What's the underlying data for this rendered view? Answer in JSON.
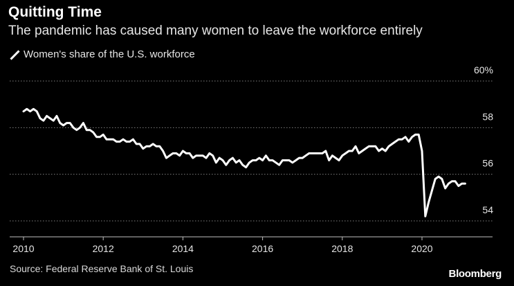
{
  "header": {
    "title": "Quitting Time",
    "subtitle": "The pandemic has caused many women to leave the workforce entirely"
  },
  "legend": {
    "label": "Women's share of the U.S. workforce"
  },
  "footer": {
    "source": "Source: Federal Reserve Bank of St. Louis",
    "brand": "Bloomberg"
  },
  "colors": {
    "background": "#000000",
    "line": "#ffffff",
    "grid": "#7f7f7f"
  },
  "chart_data": {
    "type": "line",
    "title": "Quitting Time",
    "subtitle": "The pandemic has caused many women to leave the workforce entirely",
    "xlabel": "",
    "ylabel": "",
    "xlim": [
      2009.85,
      2021.6
    ],
    "ylim": [
      53.5,
      60.3
    ],
    "x_ticks": [
      "2010",
      "2012",
      "2014",
      "2016",
      "2018",
      "2020"
    ],
    "y_ticks": [
      54,
      56,
      58,
      60
    ],
    "y_tick_labels": [
      "54",
      "56",
      "58",
      "60%"
    ],
    "grid": true,
    "legend_position": "top-left",
    "series": [
      {
        "name": "Women's share of the U.S. workforce",
        "x": [
          2010.0,
          2010.083,
          2010.167,
          2010.25,
          2010.333,
          2010.417,
          2010.5,
          2010.583,
          2010.667,
          2010.75,
          2010.833,
          2010.917,
          2011.0,
          2011.083,
          2011.167,
          2011.25,
          2011.333,
          2011.417,
          2011.5,
          2011.583,
          2011.667,
          2011.75,
          2011.833,
          2011.917,
          2012.0,
          2012.083,
          2012.167,
          2012.25,
          2012.333,
          2012.417,
          2012.5,
          2012.583,
          2012.667,
          2012.75,
          2012.833,
          2012.917,
          2013.0,
          2013.083,
          2013.167,
          2013.25,
          2013.333,
          2013.417,
          2013.5,
          2013.583,
          2013.667,
          2013.75,
          2013.833,
          2013.917,
          2014.0,
          2014.083,
          2014.167,
          2014.25,
          2014.333,
          2014.417,
          2014.5,
          2014.583,
          2014.667,
          2014.75,
          2014.833,
          2014.917,
          2015.0,
          2015.083,
          2015.167,
          2015.25,
          2015.333,
          2015.417,
          2015.5,
          2015.583,
          2015.667,
          2015.75,
          2015.833,
          2015.917,
          2016.0,
          2016.083,
          2016.167,
          2016.25,
          2016.333,
          2016.417,
          2016.5,
          2016.583,
          2016.667,
          2016.75,
          2016.833,
          2016.917,
          2017.0,
          2017.083,
          2017.167,
          2017.25,
          2017.333,
          2017.417,
          2017.5,
          2017.583,
          2017.667,
          2017.75,
          2017.833,
          2017.917,
          2018.0,
          2018.083,
          2018.167,
          2018.25,
          2018.333,
          2018.417,
          2018.5,
          2018.583,
          2018.667,
          2018.75,
          2018.833,
          2018.917,
          2019.0,
          2019.083,
          2019.167,
          2019.25,
          2019.333,
          2019.417,
          2019.5,
          2019.583,
          2019.667,
          2019.75,
          2019.833,
          2019.917,
          2020.0,
          2020.083,
          2020.167,
          2020.25,
          2020.333,
          2020.417,
          2020.5,
          2020.583,
          2020.667,
          2020.75,
          2020.833,
          2020.917,
          2021.0,
          2021.083
        ],
        "values": [
          58.7,
          58.8,
          58.7,
          58.8,
          58.7,
          58.4,
          58.3,
          58.5,
          58.4,
          58.3,
          58.5,
          58.2,
          58.1,
          58.2,
          58.2,
          58.0,
          57.9,
          58.0,
          58.2,
          57.9,
          57.9,
          57.8,
          57.6,
          57.6,
          57.7,
          57.5,
          57.5,
          57.5,
          57.4,
          57.4,
          57.5,
          57.4,
          57.4,
          57.5,
          57.3,
          57.3,
          57.1,
          57.2,
          57.2,
          57.3,
          57.2,
          57.2,
          57.0,
          56.7,
          56.8,
          56.9,
          56.9,
          56.8,
          57.0,
          56.9,
          56.9,
          56.7,
          56.8,
          56.8,
          56.8,
          56.7,
          56.9,
          56.8,
          56.5,
          56.7,
          56.6,
          56.4,
          56.6,
          56.7,
          56.5,
          56.6,
          56.4,
          56.3,
          56.5,
          56.6,
          56.6,
          56.7,
          56.6,
          56.8,
          56.6,
          56.6,
          56.5,
          56.4,
          56.6,
          56.6,
          56.6,
          56.5,
          56.6,
          56.7,
          56.7,
          56.8,
          56.9,
          56.9,
          56.9,
          56.9,
          56.9,
          57.0,
          56.6,
          56.8,
          56.7,
          56.6,
          56.8,
          56.9,
          57.0,
          57.0,
          57.2,
          56.9,
          57.0,
          57.1,
          57.2,
          57.2,
          57.2,
          57.0,
          57.1,
          57.0,
          57.2,
          57.3,
          57.4,
          57.5,
          57.5,
          57.6,
          57.4,
          57.6,
          57.7,
          57.7,
          57.0,
          54.2,
          54.8,
          55.3,
          55.8,
          55.9,
          55.8,
          55.4,
          55.6,
          55.7,
          55.7,
          55.5,
          55.6,
          55.6
        ]
      }
    ]
  }
}
